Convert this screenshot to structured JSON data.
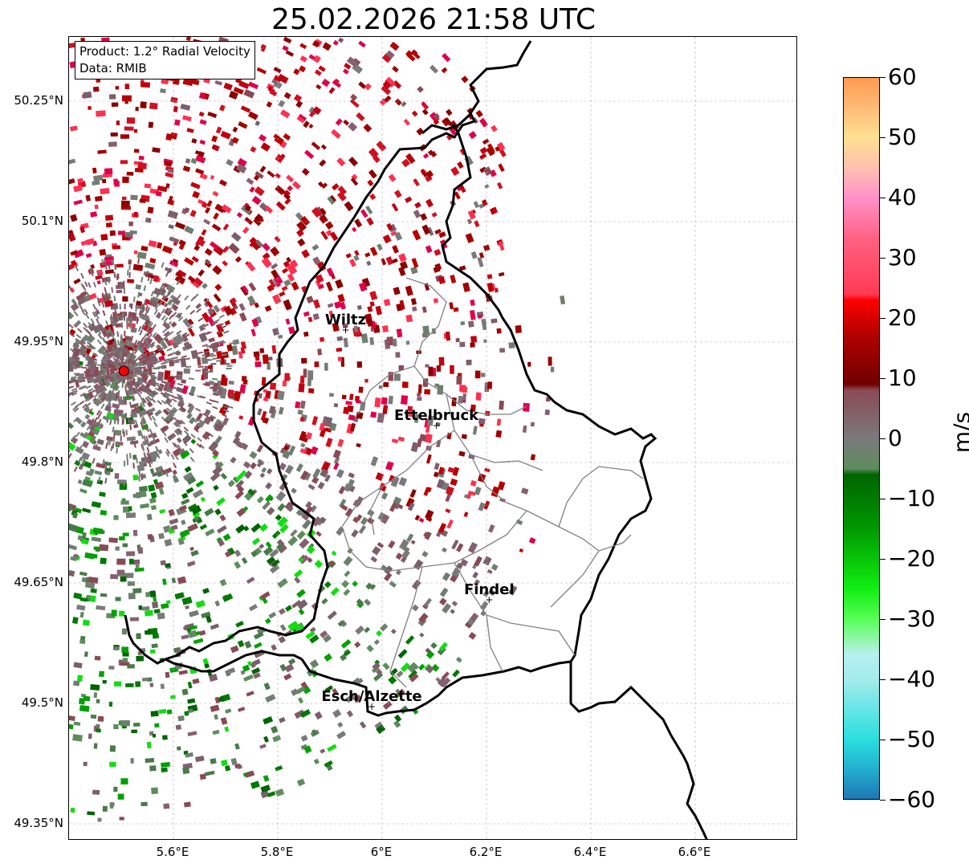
{
  "title": "25.02.2026 21:58 UTC",
  "infobox": {
    "product": "Product: 1.2° Radial Velocity",
    "data_source": "Data: RMIB"
  },
  "map": {
    "lon_range": [
      5.4,
      6.8
    ],
    "lat_range": [
      49.3,
      50.3
    ],
    "lat_ticks": [
      {
        "value": 50.25,
        "label": "50.25°N"
      },
      {
        "value": 50.1,
        "label": "50.1°N"
      },
      {
        "value": 49.95,
        "label": "49.95°N"
      },
      {
        "value": 49.8,
        "label": "49.8°N"
      },
      {
        "value": 49.65,
        "label": "49.65°N"
      },
      {
        "value": 49.5,
        "label": "49.5°N"
      },
      {
        "value": 49.35,
        "label": "49.35°N"
      }
    ],
    "lon_ticks": [
      {
        "value": 5.6,
        "label": "5.6°E"
      },
      {
        "value": 5.8,
        "label": "5.8°E"
      },
      {
        "value": 6.0,
        "label": "6°E"
      },
      {
        "value": 6.2,
        "label": "6.2°E"
      },
      {
        "value": 6.4,
        "label": "6.4°E"
      },
      {
        "value": 6.6,
        "label": "6.6°E"
      }
    ],
    "radar_site": {
      "lon": 5.505,
      "lat": 49.914,
      "color": "#ff0000"
    },
    "cities": [
      {
        "name": "Wiltz",
        "lon": 5.93,
        "lat": 49.966
      },
      {
        "name": "Ettelbruck",
        "lon": 6.104,
        "lat": 49.847
      },
      {
        "name": "Findel",
        "lon": 6.205,
        "lat": 49.63
      },
      {
        "name": "Esch/Alzette",
        "lon": 5.98,
        "lat": 49.497
      }
    ],
    "gridlines": true,
    "border_color": "#000000",
    "canton_color": "#808080"
  },
  "colorbar": {
    "unit": "m/s",
    "range": [
      -60,
      60
    ],
    "ticks": [
      {
        "value": 60,
        "label": "60"
      },
      {
        "value": 50,
        "label": "50"
      },
      {
        "value": 40,
        "label": "40"
      },
      {
        "value": 30,
        "label": "30"
      },
      {
        "value": 20,
        "label": "20"
      },
      {
        "value": 10,
        "label": "10"
      },
      {
        "value": 0,
        "label": "0"
      },
      {
        "value": -10,
        "label": "−10"
      },
      {
        "value": -20,
        "label": "−20"
      },
      {
        "value": -30,
        "label": "−30"
      },
      {
        "value": -40,
        "label": "−40"
      },
      {
        "value": -50,
        "label": "−50"
      },
      {
        "value": -60,
        "label": "−60"
      }
    ],
    "stops": [
      {
        "v": -60,
        "c": "#1f77b4"
      },
      {
        "v": -55,
        "c": "#22b0d0"
      },
      {
        "v": -50,
        "c": "#2adfdf"
      },
      {
        "v": -45,
        "c": "#66e6e6"
      },
      {
        "v": -40,
        "c": "#a6ecec"
      },
      {
        "v": -36,
        "c": "#b5f0f0"
      },
      {
        "v": -34,
        "c": "#9af5b8"
      },
      {
        "v": -30,
        "c": "#55ff55"
      },
      {
        "v": -25,
        "c": "#11ee11"
      },
      {
        "v": -15,
        "c": "#009900"
      },
      {
        "v": -6,
        "c": "#006400"
      },
      {
        "v": -5,
        "c": "#5e8c5e"
      },
      {
        "v": 0,
        "c": "#7a7a7a"
      },
      {
        "v": 8,
        "c": "#8a4a55"
      },
      {
        "v": 9,
        "c": "#700000"
      },
      {
        "v": 17,
        "c": "#b00000"
      },
      {
        "v": 23,
        "c": "#ff0000"
      },
      {
        "v": 24,
        "c": "#ff3a55"
      },
      {
        "v": 33,
        "c": "#ff6080"
      },
      {
        "v": 40,
        "c": "#ff90c8"
      },
      {
        "v": 45,
        "c": "#ffc0b0"
      },
      {
        "v": 50,
        "c": "#ffe090"
      },
      {
        "v": 55,
        "c": "#ffbb77"
      },
      {
        "v": 60,
        "c": "#ff9a50"
      }
    ]
  }
}
